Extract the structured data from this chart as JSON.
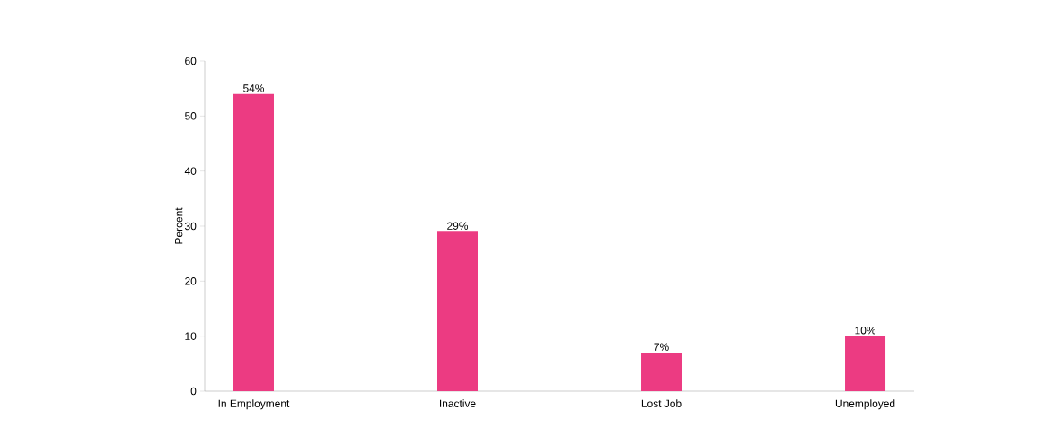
{
  "chart_data": {
    "type": "bar",
    "ylabel": "Percent",
    "categories": [
      "In Employment",
      "Inactive",
      "Lost Job",
      "Unemployed"
    ],
    "values": [
      54,
      29,
      7,
      10
    ],
    "value_labels": [
      "54%",
      "29%",
      "7%",
      "10%"
    ],
    "color": "#ec3b82",
    "ylim": [
      0,
      60
    ],
    "yticks": [
      0,
      10,
      20,
      30,
      40,
      50,
      60
    ]
  }
}
